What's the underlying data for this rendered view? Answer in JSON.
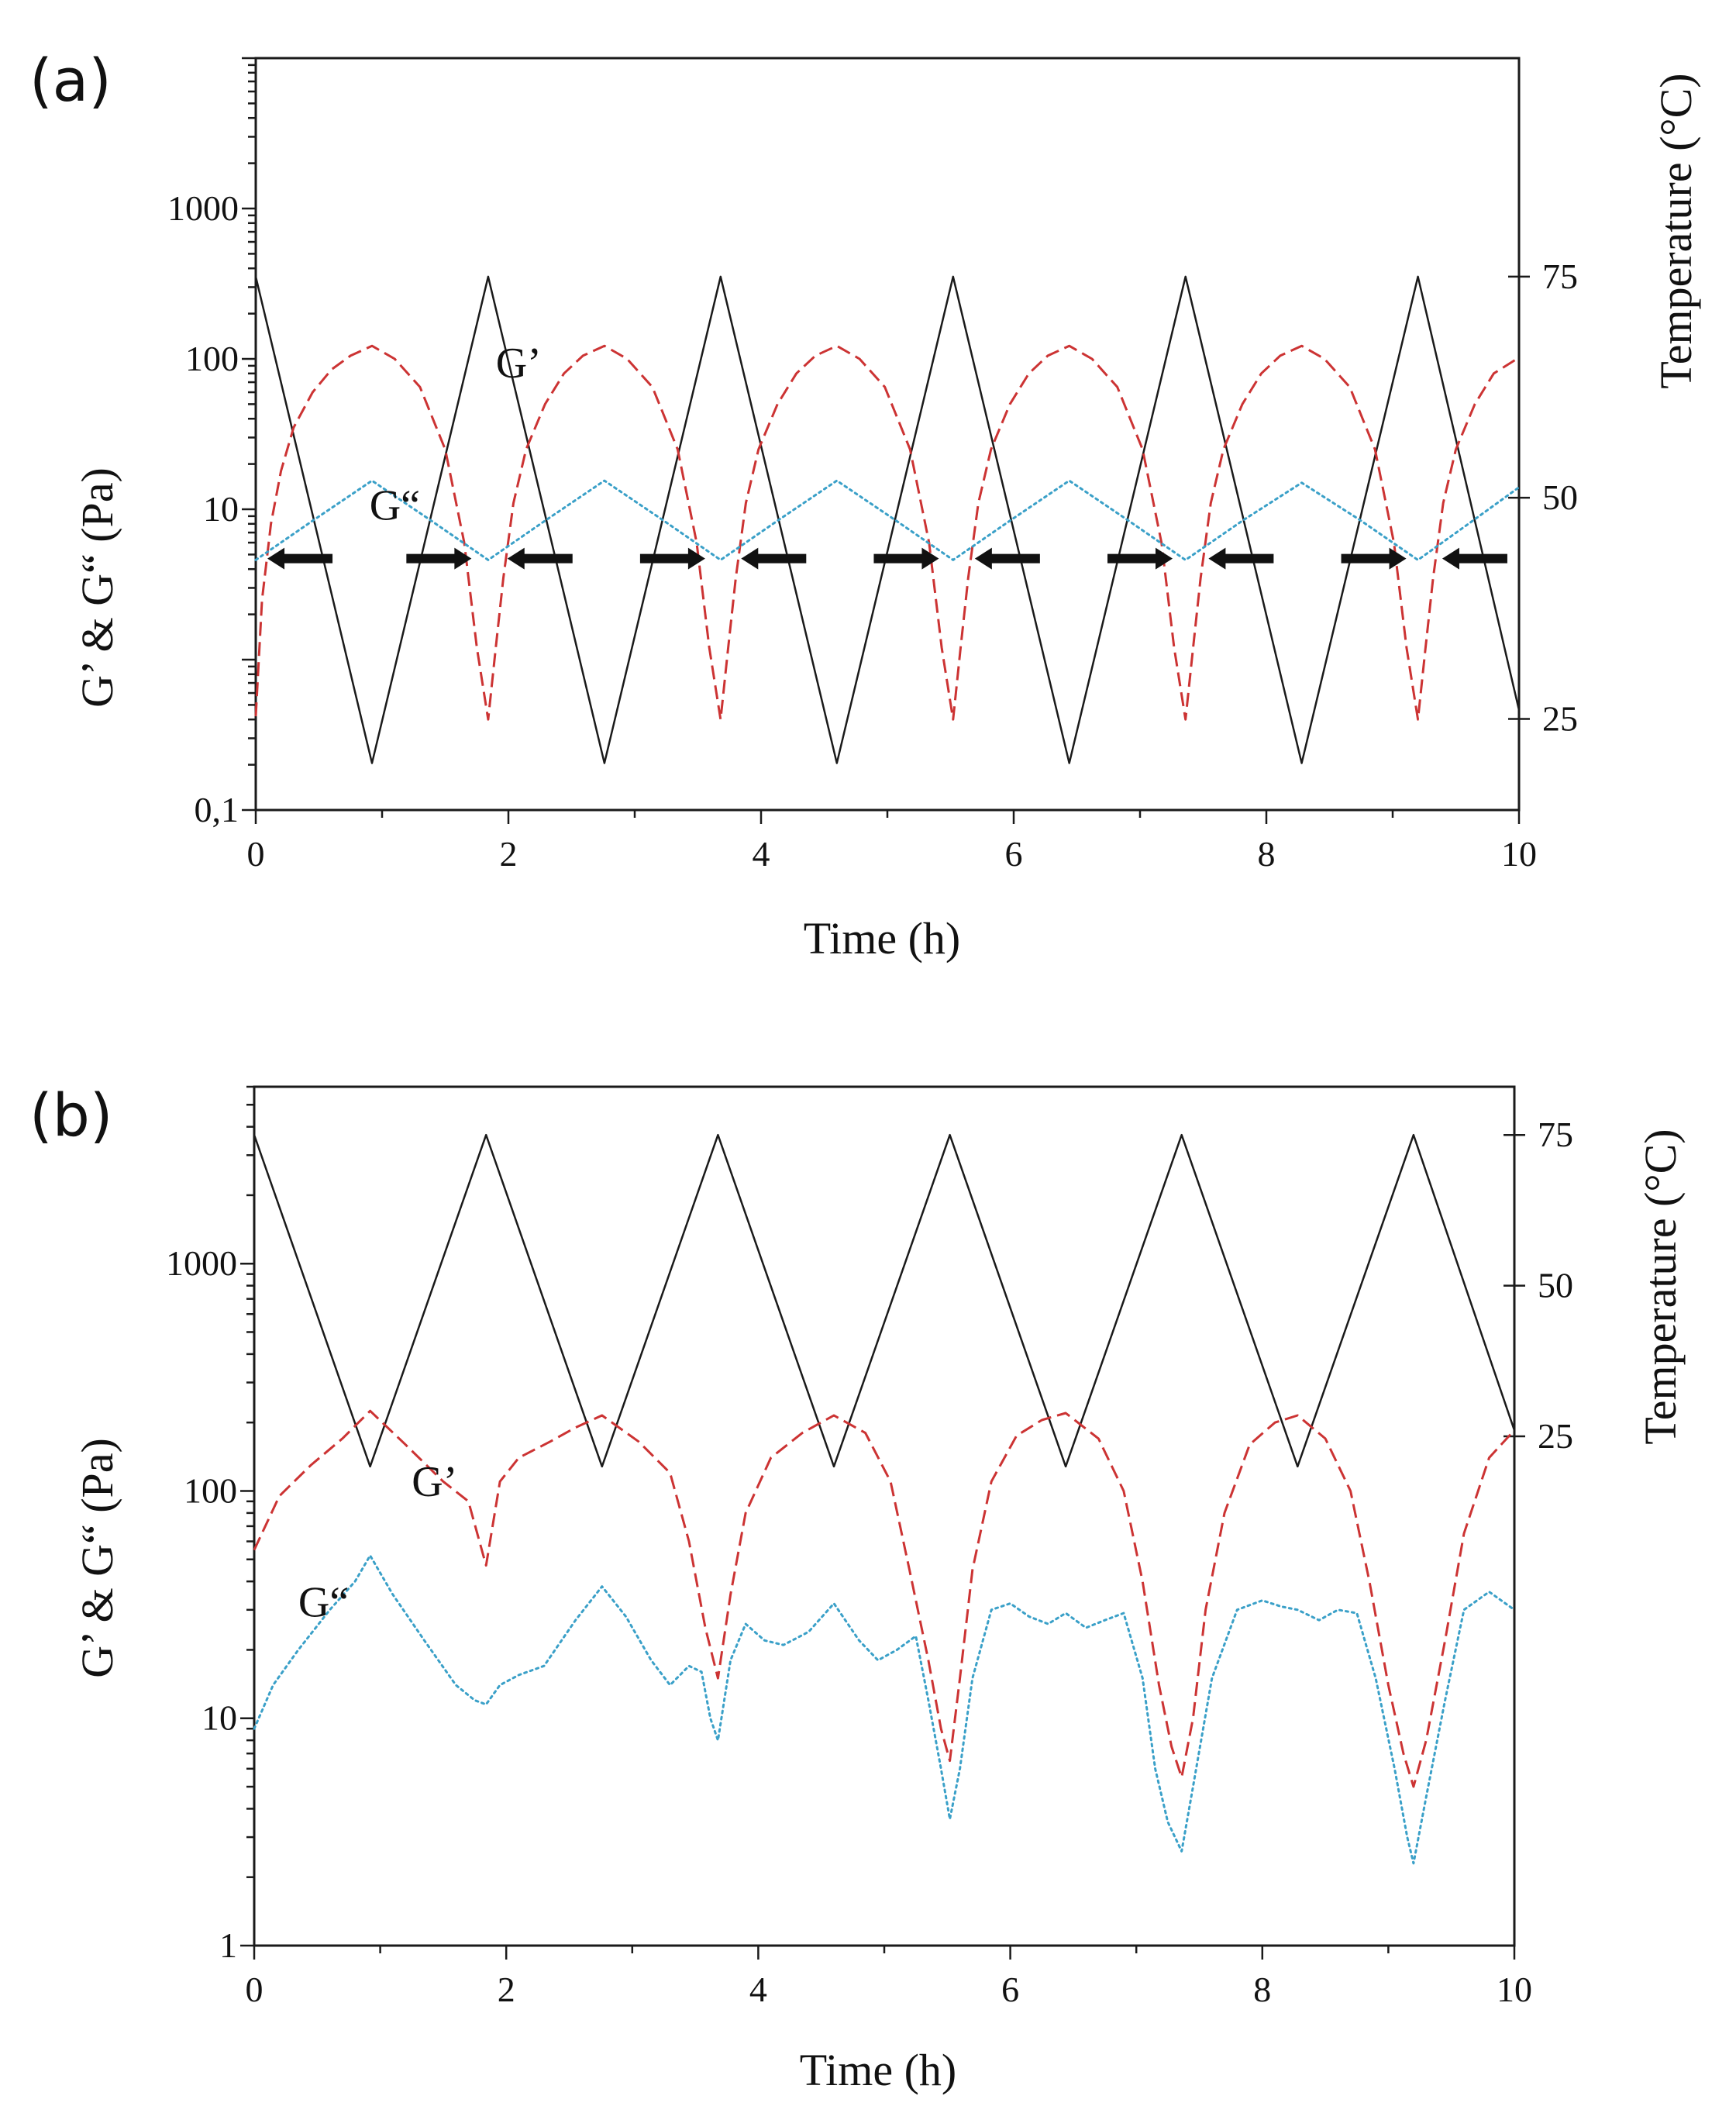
{
  "chart_data": [
    {
      "panel": "(a)",
      "type": "line",
      "xlabel": "Time (h)",
      "ylabel": "G’ & G“ (Pa)",
      "y2label": "Temperature (°C)",
      "xlim": [
        0,
        10
      ],
      "ylim": [
        0.1,
        10000
      ],
      "yscale": "log",
      "y2lim": [
        14.7,
        99.7
      ],
      "xticks": [
        "0",
        "2",
        "4",
        "6",
        "8",
        "10"
      ],
      "yticks": [
        {
          "value": 0.1,
          "label": "0,1"
        },
        {
          "value": 10,
          "label": "10"
        },
        {
          "value": 100,
          "label": "100"
        },
        {
          "value": 1000,
          "label": "1000"
        }
      ],
      "y2ticks": [
        {
          "value": 25,
          "label": "25"
        },
        {
          "value": 50,
          "label": "50"
        },
        {
          "value": 75,
          "label": "75"
        }
      ],
      "annotations": [
        {
          "text": "G’",
          "x": 1.9,
          "y": 75,
          "series": "G’"
        },
        {
          "text": "G“",
          "x": 0.9,
          "y": 8.5,
          "series": "G“"
        }
      ],
      "arrows": {
        "y": 4.7,
        "items": [
          {
            "x": 0.35,
            "dir": "left"
          },
          {
            "x": 1.45,
            "dir": "right"
          },
          {
            "x": 2.25,
            "dir": "left"
          },
          {
            "x": 3.3,
            "dir": "right"
          },
          {
            "x": 4.1,
            "dir": "left"
          },
          {
            "x": 5.15,
            "dir": "right"
          },
          {
            "x": 5.95,
            "dir": "left"
          },
          {
            "x": 7.0,
            "dir": "right"
          },
          {
            "x": 7.8,
            "dir": "left"
          },
          {
            "x": 8.85,
            "dir": "right"
          },
          {
            "x": 9.65,
            "dir": "left"
          }
        ]
      },
      "series": [
        {
          "name": "Temperature",
          "axis": "y2",
          "color": "#1a1a1a",
          "dash": "solid",
          "x": [
            0,
            0.92,
            1.84,
            2.76,
            3.68,
            4.6,
            5.52,
            6.44,
            7.36,
            8.28,
            9.2,
            10
          ],
          "y": [
            75,
            20,
            75,
            20,
            75,
            20,
            75,
            20,
            75,
            20,
            75,
            26
          ]
        },
        {
          "name": "G’",
          "axis": "y",
          "color": "#cc3333",
          "dash": "dashed",
          "x": [
            0,
            0.05,
            0.12,
            0.2,
            0.3,
            0.45,
            0.6,
            0.75,
            0.92,
            1.1,
            1.3,
            1.5,
            1.65,
            1.75,
            1.84,
            1.9,
            1.96,
            2.04,
            2.14,
            2.29,
            2.44,
            2.59,
            2.76,
            2.94,
            3.14,
            3.34,
            3.49,
            3.59,
            3.68,
            3.74,
            3.8,
            3.88,
            3.98,
            4.13,
            4.28,
            4.43,
            4.6,
            4.78,
            4.98,
            5.18,
            5.33,
            5.43,
            5.52,
            5.58,
            5.64,
            5.72,
            5.82,
            5.97,
            6.12,
            6.27,
            6.44,
            6.62,
            6.82,
            7.02,
            7.17,
            7.27,
            7.36,
            7.42,
            7.48,
            7.56,
            7.66,
            7.81,
            7.96,
            8.11,
            8.28,
            8.46,
            8.66,
            8.86,
            9.01,
            9.11,
            9.2,
            9.26,
            9.32,
            9.4,
            9.5,
            9.65,
            9.8,
            10
          ],
          "y": [
            0.42,
            2.5,
            8,
            18,
            35,
            60,
            85,
            105,
            122,
            100,
            65,
            25,
            6,
            1.2,
            0.4,
            1.2,
            3.5,
            11,
            25,
            50,
            80,
            105,
            122,
            100,
            65,
            25,
            6,
            1.2,
            0.4,
            1.2,
            3.5,
            11,
            25,
            50,
            80,
            105,
            122,
            100,
            65,
            25,
            6,
            1.2,
            0.4,
            1.2,
            3.5,
            11,
            25,
            50,
            80,
            105,
            122,
            100,
            65,
            25,
            6,
            1.2,
            0.4,
            1.2,
            3.5,
            11,
            25,
            50,
            80,
            105,
            122,
            100,
            65,
            25,
            6,
            1.2,
            0.4,
            1.2,
            3.5,
            11,
            25,
            50,
            80,
            102
          ]
        },
        {
          "name": "G“",
          "axis": "y",
          "color": "#3aa0c8",
          "dash": "dotted",
          "x": [
            0,
            0.46,
            0.92,
            1.38,
            1.84,
            2.3,
            2.76,
            3.22,
            3.68,
            4.14,
            4.6,
            5.06,
            5.52,
            5.98,
            6.44,
            6.9,
            7.36,
            7.82,
            8.28,
            8.74,
            9.2,
            9.6,
            10
          ],
          "y": [
            4.6,
            8.5,
            15.5,
            8.5,
            4.6,
            8.5,
            15.5,
            8.5,
            4.6,
            8.5,
            15.5,
            8.5,
            4.6,
            8.5,
            15.5,
            8.5,
            4.6,
            8.5,
            15.0,
            8.5,
            4.6,
            8.0,
            14.0
          ]
        }
      ]
    },
    {
      "panel": "(b)",
      "type": "line",
      "xlabel": "Time (h)",
      "ylabel": "G’ & G“ (Pa)",
      "y2label": "Temperature (°C)",
      "xlim": [
        0,
        10
      ],
      "ylim": [
        1,
        6000
      ],
      "yscale": "log",
      "y2lim": [
        -59.5,
        83
      ],
      "xticks": [
        "0",
        "2",
        "4",
        "6",
        "8",
        "10"
      ],
      "yticks": [
        {
          "value": 1,
          "label": "1"
        },
        {
          "value": 10,
          "label": "10"
        },
        {
          "value": 100,
          "label": "100"
        },
        {
          "value": 1000,
          "label": "1000"
        }
      ],
      "y2ticks": [
        {
          "value": 25,
          "label": "25"
        },
        {
          "value": 50,
          "label": "50"
        },
        {
          "value": 75,
          "label": "75"
        }
      ],
      "annotations": [
        {
          "text": "G’",
          "x": 1.25,
          "y": 95,
          "series": "G’"
        },
        {
          "text": "G“",
          "x": 0.35,
          "y": 28,
          "series": "G“"
        }
      ],
      "series": [
        {
          "name": "Temperature",
          "axis": "y2",
          "color": "#1a1a1a",
          "dash": "solid",
          "x": [
            0,
            0.92,
            1.84,
            2.76,
            3.68,
            4.6,
            5.52,
            6.44,
            7.36,
            8.28,
            9.2,
            10
          ],
          "y": [
            75,
            20,
            75,
            20,
            75,
            20,
            75,
            20,
            75,
            20,
            75,
            26
          ]
        },
        {
          "name": "G’",
          "axis": "y",
          "color": "#cc3333",
          "dash": "dashed",
          "x": [
            0,
            0.2,
            0.45,
            0.7,
            0.92,
            1.2,
            1.5,
            1.7,
            1.84,
            1.95,
            2.1,
            2.35,
            2.55,
            2.76,
            3.05,
            3.3,
            3.45,
            3.58,
            3.68,
            3.78,
            3.9,
            4.1,
            4.35,
            4.6,
            4.85,
            5.05,
            5.2,
            5.35,
            5.45,
            5.52,
            5.6,
            5.7,
            5.85,
            6.05,
            6.25,
            6.44,
            6.7,
            6.9,
            7.05,
            7.18,
            7.28,
            7.36,
            7.45,
            7.55,
            7.7,
            7.9,
            8.1,
            8.28,
            8.5,
            8.7,
            8.85,
            9.0,
            9.12,
            9.2,
            9.3,
            9.45,
            9.6,
            9.8,
            10
          ],
          "y": [
            55,
            95,
            130,
            170,
            225,
            160,
            110,
            90,
            47,
            110,
            140,
            165,
            190,
            215,
            165,
            120,
            60,
            25,
            15,
            35,
            80,
            140,
            180,
            215,
            180,
            110,
            45,
            18,
            9,
            6.5,
            15,
            45,
            110,
            175,
            205,
            220,
            170,
            100,
            40,
            14,
            7.5,
            5.5,
            10,
            30,
            80,
            160,
            200,
            215,
            170,
            100,
            40,
            14,
            7,
            5,
            8,
            22,
            65,
            140,
            185
          ]
        },
        {
          "name": "G“",
          "axis": "y",
          "color": "#3aa0c8",
          "dash": "dotted",
          "x": [
            0,
            0.15,
            0.35,
            0.6,
            0.8,
            0.92,
            1.1,
            1.35,
            1.6,
            1.75,
            1.84,
            1.95,
            2.1,
            2.3,
            2.55,
            2.76,
            2.95,
            3.15,
            3.3,
            3.45,
            3.55,
            3.62,
            3.68,
            3.78,
            3.9,
            4.05,
            4.2,
            4.4,
            4.6,
            4.8,
            4.95,
            5.1,
            5.25,
            5.35,
            5.45,
            5.52,
            5.6,
            5.7,
            5.85,
            6.0,
            6.15,
            6.3,
            6.44,
            6.6,
            6.75,
            6.9,
            7.05,
            7.15,
            7.25,
            7.36,
            7.45,
            7.6,
            7.8,
            8.0,
            8.15,
            8.28,
            8.45,
            8.6,
            8.75,
            8.9,
            9.05,
            9.15,
            9.2,
            9.3,
            9.45,
            9.6,
            9.8,
            10
          ],
          "y": [
            9,
            14,
            20,
            30,
            40,
            52,
            35,
            22,
            14,
            12,
            11.5,
            14,
            15.5,
            17,
            27,
            38,
            28,
            18,
            14,
            17,
            16,
            10,
            8,
            18,
            26,
            22,
            21,
            24,
            32,
            22,
            18,
            20,
            23,
            12,
            6,
            3.6,
            6,
            15,
            30,
            32,
            28,
            26,
            29,
            25,
            27,
            29,
            15,
            6,
            3.5,
            2.6,
            5,
            15,
            30,
            33,
            31,
            30,
            27,
            30,
            29,
            15,
            6,
            3,
            2.3,
            4.5,
            12,
            30,
            36,
            30
          ]
        }
      ]
    }
  ]
}
